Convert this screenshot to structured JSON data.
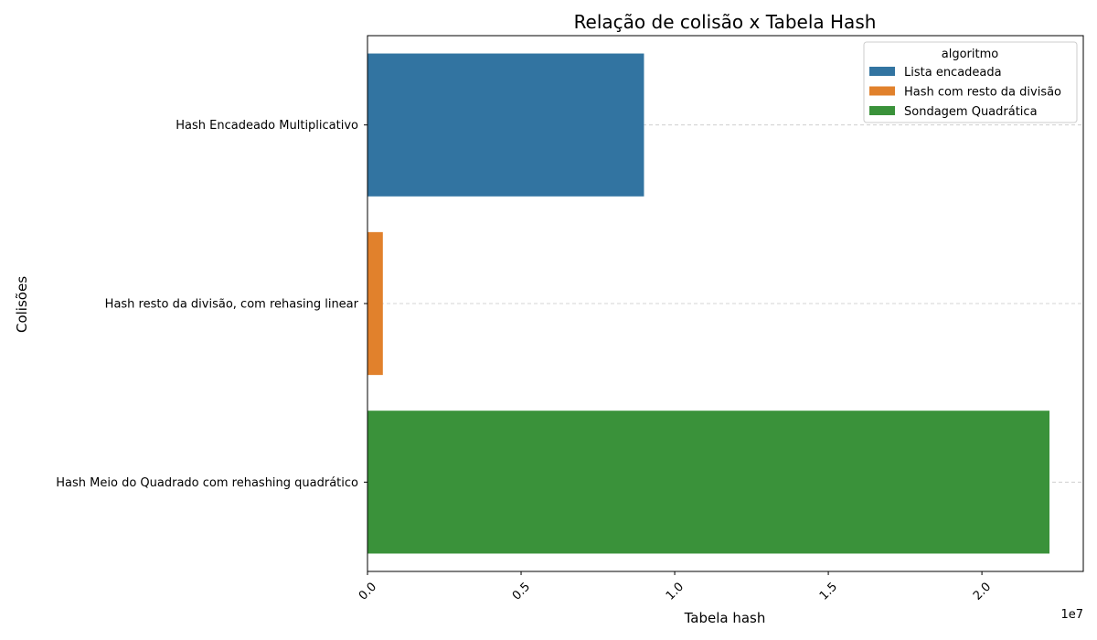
{
  "chart_data": {
    "type": "bar",
    "orientation": "horizontal",
    "title": "Relação de colisão x Tabela Hash",
    "xlabel": "Tabela hash",
    "ylabel": "Colisões",
    "x_scale_label": "1e7",
    "xlim": [
      0,
      23300000
    ],
    "x_ticks": [
      0,
      5000000,
      10000000,
      15000000,
      20000000
    ],
    "x_tick_labels": [
      "0.0",
      "0.5",
      "1.0",
      "1.5",
      "2.0"
    ],
    "grid": "y-dashed",
    "legend": {
      "title": "algoritmo",
      "placement": "top-right"
    },
    "categories": [
      "Hash Encadeado Multiplicativo",
      "Hash resto da divisão, com rehasing linear",
      "Hash Meio do Quadrado com rehashing quadrático"
    ],
    "series": [
      {
        "name": "Lista encadeada",
        "category": "Hash Encadeado Multiplicativo",
        "value": 9000000,
        "color": "#3274a1"
      },
      {
        "name": "Hash com resto da divisão",
        "category": "Hash resto da divisão, com rehasing linear",
        "value": 500000,
        "color": "#e1812c"
      },
      {
        "name": "Sondagem Quadrática",
        "category": "Hash Meio do Quadrado com rehashing quadrático",
        "value": 22200000,
        "color": "#3a923a"
      }
    ]
  }
}
